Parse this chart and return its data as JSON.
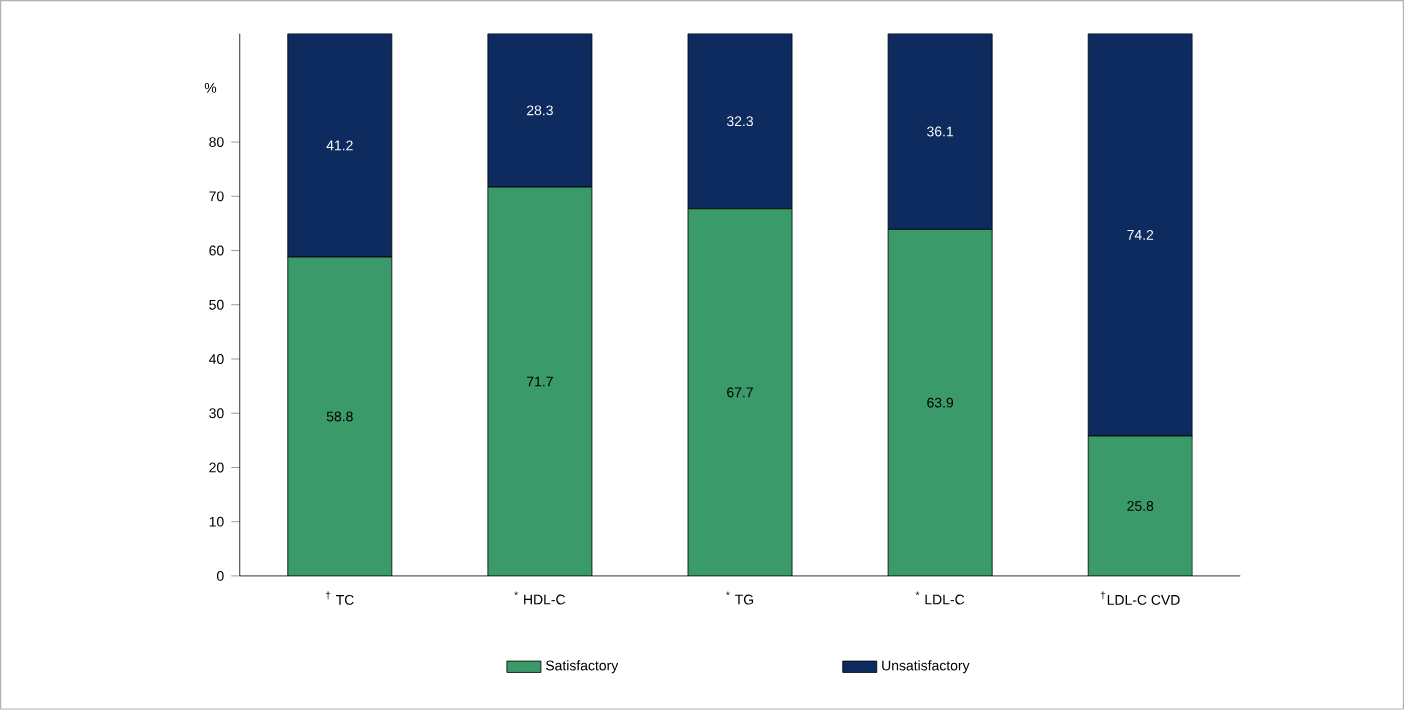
{
  "chart_data": {
    "type": "bar",
    "stacked": true,
    "ylabel": "%",
    "categories": [
      "$^{†}$ TC",
      "$^{*}$ HDL-C",
      "$^{*}$ TG",
      "$^{*}$ LDL-C",
      "$^{†}$LDL-C CVD"
    ],
    "series": [
      {
        "name": "Satisfactory",
        "color": "#3a9a6a",
        "values": [
          58.8,
          71.7,
          67.7,
          63.9,
          25.8
        ]
      },
      {
        "name": "Unsatisfactory",
        "color": "#0d2b5e",
        "values": [
          41.2,
          28.3,
          32.3,
          36.1,
          74.2
        ]
      }
    ],
    "ylim": [
      0,
      100
    ],
    "yticks": [
      0,
      10,
      20,
      30,
      40,
      50,
      60,
      70,
      80
    ],
    "data_labels": true,
    "legend": "bottom",
    "grid": false
  }
}
